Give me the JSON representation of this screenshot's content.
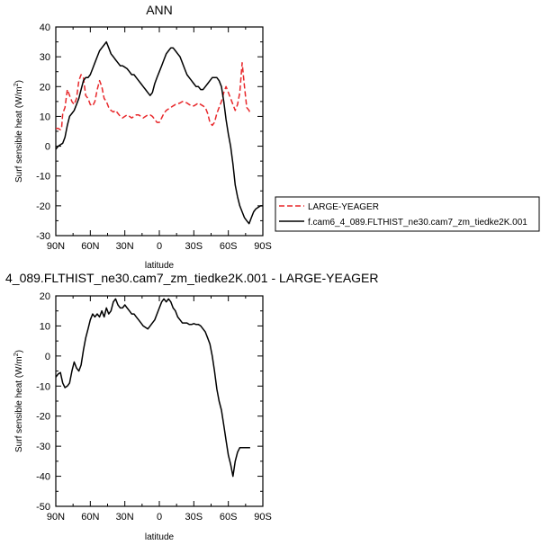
{
  "chart_data": [
    {
      "type": "line",
      "title": "ANN",
      "xlabel": "latitude",
      "ylabel": "Surf sensible heat (W/m",
      "ylabel_sup": "2",
      "ylabel_end": ")",
      "xlim": [
        90,
        -90
      ],
      "ylim": [
        -30,
        40
      ],
      "xticks": [
        90,
        60,
        30,
        0,
        -30,
        -60,
        -90
      ],
      "xtick_labels": [
        "90N",
        "60N",
        "30N",
        "0",
        "30S",
        "60S",
        "90S"
      ],
      "yticks": [
        -30,
        -20,
        -10,
        0,
        10,
        20,
        30,
        40
      ],
      "ytick_labels": [
        "-30",
        "-20",
        "-10",
        "0",
        "10",
        "20",
        "30",
        "40"
      ],
      "legend": "right",
      "grid": false,
      "series": [
        {
          "name": "LARGE-YEAGER",
          "color": "#e8282b",
          "dash": true,
          "x": [
            90,
            88,
            86,
            85,
            84,
            82,
            80,
            78,
            76,
            74,
            72,
            70,
            68,
            66,
            64,
            62,
            60,
            58,
            56,
            54,
            52,
            50,
            48,
            46,
            44,
            42,
            40,
            38,
            36,
            34,
            32,
            30,
            28,
            26,
            24,
            22,
            20,
            18,
            16,
            14,
            12,
            10,
            8,
            6,
            4,
            2,
            0,
            -2,
            -4,
            -6,
            -8,
            -10,
            -12,
            -14,
            -16,
            -18,
            -20,
            -22,
            -24,
            -26,
            -28,
            -30,
            -32,
            -34,
            -36,
            -38,
            -40,
            -42,
            -44,
            -46,
            -48,
            -50,
            -52,
            -54,
            -56,
            -58,
            -60,
            -62,
            -64,
            -66,
            -68,
            -70,
            -72,
            -74,
            -76,
            -78,
            -79
          ],
          "values": [
            6,
            6,
            5.5,
            6,
            11,
            13,
            19,
            17,
            15,
            14,
            16,
            22,
            24,
            23,
            17,
            16,
            14,
            13.5,
            15,
            19,
            22,
            20,
            16,
            15,
            13,
            12,
            11.5,
            12,
            11,
            10,
            9.5,
            10,
            10.5,
            10,
            9.5,
            10,
            10.5,
            10.5,
            10,
            9.5,
            10,
            10.5,
            10.5,
            10,
            9,
            8,
            8,
            9.5,
            11,
            12,
            12.5,
            13,
            13.5,
            14,
            14.2,
            14.5,
            15,
            14.8,
            14.5,
            14,
            13.5,
            13.5,
            14,
            14.5,
            14,
            13.5,
            13,
            11,
            8,
            7,
            8,
            11,
            13,
            15,
            18,
            20,
            18,
            16,
            14,
            12,
            14,
            18,
            28,
            20,
            13,
            12,
            11
          ]
        },
        {
          "name": "f.cam6_4_089.FLTHIST_ne30.cam7_zm_tiedke2K.001",
          "color": "#000000",
          "dash": false,
          "x": [
            90,
            88,
            86,
            84,
            82,
            80,
            78,
            76,
            74,
            72,
            70,
            68,
            66,
            64,
            62,
            60,
            58,
            56,
            54,
            52,
            50,
            48,
            46,
            44,
            42,
            40,
            38,
            36,
            34,
            32,
            30,
            28,
            26,
            24,
            22,
            20,
            18,
            16,
            14,
            12,
            10,
            8,
            6,
            4,
            2,
            0,
            -2,
            -4,
            -6,
            -8,
            -10,
            -12,
            -14,
            -16,
            -18,
            -20,
            -22,
            -24,
            -26,
            -28,
            -30,
            -32,
            -34,
            -36,
            -38,
            -40,
            -42,
            -44,
            -46,
            -48,
            -50,
            -52,
            -54,
            -56,
            -58,
            -60,
            -62,
            -64,
            -66,
            -68,
            -70,
            -72,
            -74,
            -76,
            -78,
            -80,
            -82,
            -84,
            -86,
            -88,
            -90
          ],
          "values": [
            -1,
            0,
            0.5,
            1,
            3,
            7,
            10,
            11,
            12,
            14,
            16,
            19,
            22,
            23,
            23,
            24,
            26,
            28,
            30,
            32,
            33,
            34,
            35,
            33,
            31,
            30,
            29,
            28,
            27,
            27,
            26.5,
            26,
            25,
            24,
            24,
            23,
            22,
            21,
            20,
            19,
            18,
            17,
            18,
            21,
            23,
            25,
            27,
            29,
            31,
            32,
            33,
            33,
            32,
            31,
            30,
            28,
            26,
            24,
            23,
            22,
            21,
            20,
            20,
            19,
            19,
            20,
            21,
            22,
            23,
            23,
            23,
            22,
            20,
            15,
            9,
            4,
            0,
            -6,
            -13,
            -17,
            -20,
            -22,
            -24,
            -25,
            -26,
            -24,
            -22,
            -21,
            -20.5,
            -20,
            -20
          ],
          "ordered_x": "fixed"
        }
      ]
    },
    {
      "type": "line",
      "title": "4_089.FLTHIST_ne30.cam7_zm_tiedke2K.001 - LARGE-YEAGER",
      "xlabel": "latitude",
      "ylabel": "Surf sensible heat (W/m",
      "ylabel_sup": "2",
      "ylabel_end": ")",
      "xlim": [
        90,
        -90
      ],
      "ylim": [
        -50,
        20
      ],
      "xticks": [
        90,
        60,
        30,
        0,
        -30,
        -60,
        -90
      ],
      "xtick_labels": [
        "90N",
        "60N",
        "30N",
        "0",
        "30S",
        "60S",
        "90S"
      ],
      "yticks": [
        -50,
        -40,
        -30,
        -20,
        -10,
        0,
        10,
        20
      ],
      "ytick_labels": [
        "-50",
        "-40",
        "-30",
        "-20",
        "-10",
        "0",
        "10",
        "20"
      ],
      "grid": false,
      "series": [
        {
          "color": "#000000",
          "dash": false,
          "x": [
            90,
            88,
            86,
            84,
            82,
            80,
            78,
            76,
            74,
            72,
            70,
            68,
            66,
            64,
            62,
            60,
            58,
            56,
            54,
            52,
            50,
            48,
            46,
            44,
            42,
            40,
            38,
            36,
            34,
            32,
            30,
            28,
            26,
            24,
            22,
            20,
            18,
            16,
            14,
            12,
            10,
            8,
            6,
            4,
            2,
            0,
            -2,
            -4,
            -6,
            -8,
            -10,
            -12,
            -14,
            -16,
            -18,
            -20,
            -22,
            -24,
            -26,
            -28,
            -30,
            -32,
            -34,
            -36,
            -38,
            -40,
            -42,
            -44,
            -46,
            -48,
            -50,
            -52,
            -54,
            -56,
            -58,
            -60,
            -62,
            -64,
            -66,
            -68,
            -70,
            -72,
            -74,
            -76,
            -78,
            -79
          ],
          "values": [
            -7,
            -6,
            -5.5,
            -9,
            -10.5,
            -10,
            -9,
            -5,
            -2,
            -4,
            -5,
            -3,
            2,
            6,
            9,
            12,
            14,
            13,
            14,
            13,
            15,
            13,
            16,
            14,
            15,
            18,
            19,
            17,
            16,
            16,
            17,
            16,
            15,
            14,
            14,
            13,
            12,
            11,
            10,
            9.5,
            9,
            10,
            11,
            12,
            14,
            16,
            18,
            19,
            18,
            19,
            18,
            16,
            15,
            13,
            12,
            11,
            11,
            11,
            10.5,
            10.5,
            10.8,
            10.5,
            10.5,
            10,
            9,
            8,
            6,
            4,
            0,
            -5,
            -11,
            -15,
            -18,
            -23,
            -28,
            -33,
            -36,
            -40,
            -35,
            -32,
            -30.5,
            -30.5,
            -30.5,
            -30.5,
            -30.5,
            -30.5
          ]
        }
      ]
    }
  ]
}
